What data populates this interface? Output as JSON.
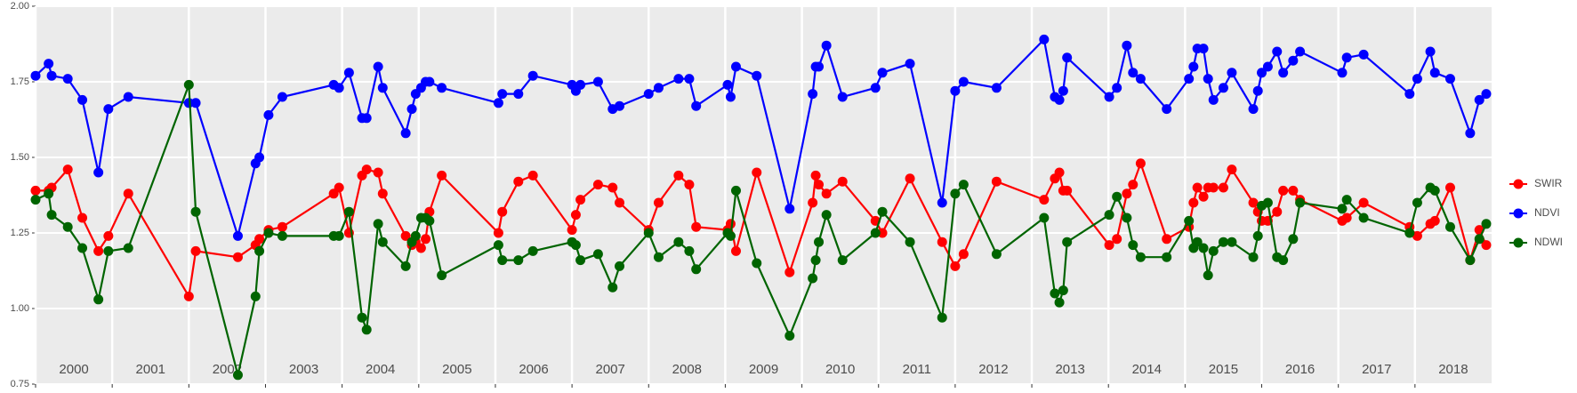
{
  "chart_data": {
    "type": "line",
    "x": [
      2000.0,
      2000.17,
      2000.21,
      2000.42,
      2000.61,
      2000.82,
      2000.95,
      2001.21,
      2002.0,
      2002.09,
      2002.64,
      2002.87,
      2002.92,
      2003.04,
      2003.22,
      2003.89,
      2003.96,
      2004.09,
      2004.26,
      2004.32,
      2004.47,
      2004.53,
      2004.83,
      2004.91,
      2004.96,
      2005.03,
      2005.09,
      2005.14,
      2005.3,
      2006.04,
      2006.09,
      2006.3,
      2006.49,
      2007.0,
      2007.05,
      2007.11,
      2007.34,
      2007.53,
      2007.62,
      2008.0,
      2008.13,
      2008.39,
      2008.53,
      2008.62,
      2009.03,
      2009.07,
      2009.14,
      2009.41,
      2009.84,
      2010.14,
      2010.18,
      2010.22,
      2010.32,
      2010.53,
      2010.96,
      2011.05,
      2011.41,
      2011.83,
      2012.0,
      2012.11,
      2012.54,
      2013.16,
      2013.3,
      2013.36,
      2013.41,
      2013.46,
      2014.01,
      2014.11,
      2014.24,
      2014.32,
      2014.42,
      2014.76,
      2015.05,
      2015.11,
      2015.16,
      2015.24,
      2015.3,
      2015.37,
      2015.5,
      2015.61,
      2015.89,
      2015.95,
      2016.0,
      2016.08,
      2016.2,
      2016.28,
      2016.41,
      2016.5,
      2017.05,
      2017.11,
      2017.33,
      2017.93,
      2018.03,
      2018.2,
      2018.26,
      2018.46,
      2018.72,
      2018.84,
      2018.93
    ],
    "series": [
      {
        "name": "SWIR",
        "color": "#ff0000",
        "values": [
          1.39,
          1.39,
          1.4,
          1.46,
          1.3,
          1.19,
          1.24,
          1.38,
          1.04,
          1.19,
          1.17,
          1.21,
          1.23,
          1.26,
          1.27,
          1.38,
          1.4,
          1.25,
          1.44,
          1.46,
          1.45,
          1.38,
          1.24,
          1.21,
          1.22,
          1.2,
          1.23,
          1.32,
          1.44,
          1.25,
          1.32,
          1.42,
          1.44,
          1.26,
          1.31,
          1.36,
          1.41,
          1.4,
          1.35,
          1.26,
          1.35,
          1.44,
          1.41,
          1.27,
          1.26,
          1.28,
          1.19,
          1.45,
          1.12,
          1.35,
          1.44,
          1.41,
          1.38,
          1.42,
          1.29,
          1.25,
          1.43,
          1.22,
          1.14,
          1.18,
          1.42,
          1.36,
          1.43,
          1.45,
          1.39,
          1.39,
          1.21,
          1.23,
          1.38,
          1.41,
          1.48,
          1.23,
          1.27,
          1.35,
          1.4,
          1.37,
          1.4,
          1.4,
          1.4,
          1.46,
          1.35,
          1.32,
          1.29,
          1.29,
          1.32,
          1.39,
          1.39,
          1.36,
          1.29,
          1.3,
          1.35,
          1.27,
          1.24,
          1.28,
          1.29,
          1.4,
          1.16,
          1.26,
          1.21
        ]
      },
      {
        "name": "NDVI",
        "color": "#0000ff",
        "values": [
          1.77,
          1.81,
          1.77,
          1.76,
          1.69,
          1.45,
          1.66,
          1.7,
          1.68,
          1.68,
          1.24,
          1.48,
          1.5,
          1.64,
          1.7,
          1.74,
          1.73,
          1.78,
          1.63,
          1.63,
          1.8,
          1.73,
          1.58,
          1.66,
          1.71,
          1.73,
          1.75,
          1.75,
          1.73,
          1.68,
          1.71,
          1.71,
          1.77,
          1.74,
          1.72,
          1.74,
          1.75,
          1.66,
          1.67,
          1.71,
          1.73,
          1.76,
          1.76,
          1.67,
          1.74,
          1.7,
          1.8,
          1.77,
          1.33,
          1.71,
          1.8,
          1.8,
          1.87,
          1.7,
          1.73,
          1.78,
          1.81,
          1.35,
          1.72,
          1.75,
          1.73,
          1.89,
          1.7,
          1.69,
          1.72,
          1.83,
          1.7,
          1.73,
          1.87,
          1.78,
          1.76,
          1.66,
          1.76,
          1.8,
          1.86,
          1.86,
          1.76,
          1.69,
          1.73,
          1.78,
          1.66,
          1.72,
          1.78,
          1.8,
          1.85,
          1.78,
          1.82,
          1.85,
          1.78,
          1.83,
          1.84,
          1.71,
          1.76,
          1.85,
          1.78,
          1.76,
          1.58,
          1.69,
          1.71
        ]
      },
      {
        "name": "NDWI",
        "color": "#006400",
        "values": [
          1.36,
          1.38,
          1.31,
          1.27,
          1.2,
          1.03,
          1.19,
          1.2,
          1.74,
          1.32,
          0.78,
          1.04,
          1.19,
          1.25,
          1.24,
          1.24,
          1.24,
          1.32,
          0.97,
          0.93,
          1.28,
          1.22,
          1.14,
          1.22,
          1.24,
          1.3,
          1.3,
          1.29,
          1.11,
          1.21,
          1.16,
          1.16,
          1.19,
          1.22,
          1.21,
          1.16,
          1.18,
          1.07,
          1.14,
          1.25,
          1.17,
          1.22,
          1.19,
          1.13,
          1.25,
          1.24,
          1.39,
          1.15,
          0.91,
          1.1,
          1.16,
          1.22,
          1.31,
          1.16,
          1.25,
          1.32,
          1.22,
          0.97,
          1.38,
          1.41,
          1.18,
          1.3,
          1.05,
          1.02,
          1.06,
          1.22,
          1.31,
          1.37,
          1.3,
          1.21,
          1.17,
          1.17,
          1.29,
          1.2,
          1.22,
          1.2,
          1.11,
          1.19,
          1.22,
          1.22,
          1.17,
          1.24,
          1.34,
          1.35,
          1.17,
          1.16,
          1.23,
          1.35,
          1.33,
          1.36,
          1.3,
          1.25,
          1.35,
          1.4,
          1.39,
          1.27,
          1.16,
          1.23,
          1.28
        ]
      }
    ],
    "xlim": [
      2000,
      2019
    ],
    "xticks": [
      {
        "value": 2000,
        "label": "2000"
      },
      {
        "value": 2001,
        "label": "2001"
      },
      {
        "value": 2002,
        "label": "2002"
      },
      {
        "value": 2003,
        "label": "2003"
      },
      {
        "value": 2004,
        "label": "2004"
      },
      {
        "value": 2005,
        "label": "2005"
      },
      {
        "value": 2006,
        "label": "2006"
      },
      {
        "value": 2007,
        "label": "2007"
      },
      {
        "value": 2008,
        "label": "2008"
      },
      {
        "value": 2009,
        "label": "2009"
      },
      {
        "value": 2010,
        "label": "2010"
      },
      {
        "value": 2011,
        "label": "2011"
      },
      {
        "value": 2012,
        "label": "2012"
      },
      {
        "value": 2013,
        "label": "2013"
      },
      {
        "value": 2014,
        "label": "2014"
      },
      {
        "value": 2015,
        "label": "2015"
      },
      {
        "value": 2016,
        "label": "2016"
      },
      {
        "value": 2017,
        "label": "2017"
      },
      {
        "value": 2018,
        "label": "2018"
      }
    ],
    "ylim": [
      0.75,
      2.0
    ],
    "yticks": [
      {
        "value": 0.75,
        "label": "0.75"
      },
      {
        "value": 1,
        "label": "1.00"
      },
      1.25,
      {
        "value": 1.5,
        "label": "1.50"
      },
      1.75,
      {
        "value": 2,
        "label": "2.00"
      }
    ],
    "grid": true,
    "legend": "right"
  }
}
